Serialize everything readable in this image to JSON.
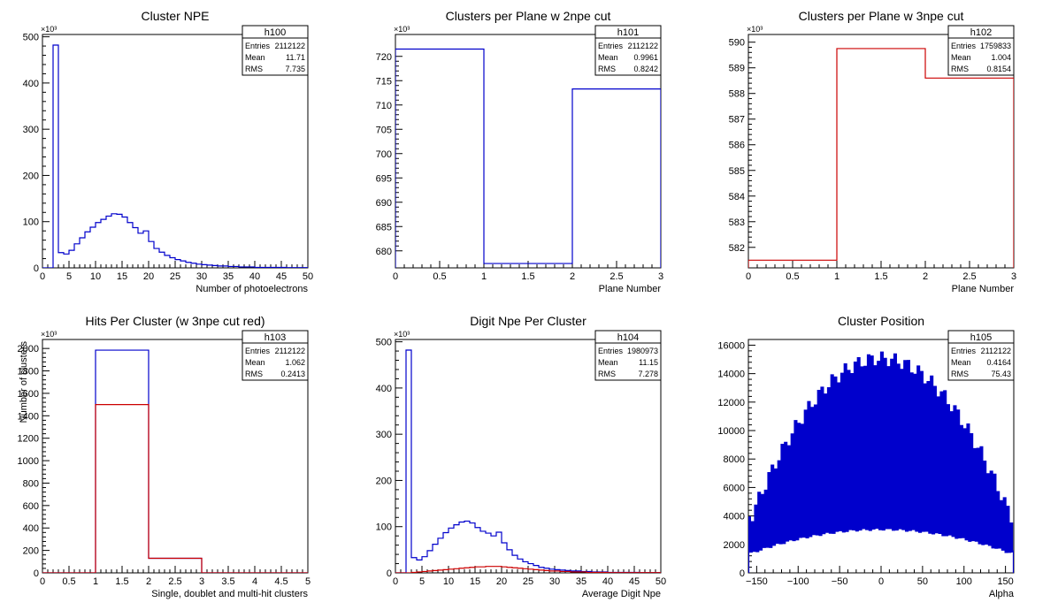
{
  "charts": [
    {
      "key": "h100",
      "title": "Cluster NPE",
      "stats": {
        "name": "h100",
        "rows": [
          [
            "Entries",
            "2112122"
          ],
          [
            "Mean",
            "11.71"
          ],
          [
            "RMS",
            "7.735"
          ]
        ]
      },
      "xlabel": "Number of photoelectrons",
      "ylabel": "",
      "exponent_label": "×10³",
      "x_ticks": [
        "0",
        "5",
        "10",
        "15",
        "20",
        "25",
        "30",
        "35",
        "40",
        "45",
        "50"
      ],
      "y_ticks": [
        "0",
        "100",
        "200",
        "300",
        "400",
        "500"
      ]
    },
    {
      "key": "h101",
      "title": "Clusters per Plane w 2npe cut",
      "stats": {
        "name": "h101",
        "rows": [
          [
            "Entries",
            "2112122"
          ],
          [
            "Mean",
            "0.9961"
          ],
          [
            "RMS",
            "0.8242"
          ]
        ]
      },
      "xlabel": "Plane Number",
      "ylabel": "",
      "exponent_label": "×10³",
      "x_ticks": [
        "0",
        "0.5",
        "1",
        "1.5",
        "2",
        "2.5",
        "3"
      ],
      "y_ticks": [
        "680",
        "685",
        "690",
        "695",
        "700",
        "705",
        "710",
        "715",
        "720"
      ]
    },
    {
      "key": "h102",
      "title": "Clusters per Plane w 3npe cut",
      "stats": {
        "name": "h102",
        "rows": [
          [
            "Entries",
            "1759833"
          ],
          [
            "Mean",
            "1.004"
          ],
          [
            "RMS",
            "0.8154"
          ]
        ]
      },
      "xlabel": "Plane Number",
      "ylabel": "",
      "exponent_label": "×10³",
      "x_ticks": [
        "0",
        "0.5",
        "1",
        "1.5",
        "2",
        "2.5",
        "3"
      ],
      "y_ticks": [
        "582",
        "583",
        "584",
        "585",
        "586",
        "587",
        "588",
        "589",
        "590"
      ]
    },
    {
      "key": "h103",
      "title": "Hits Per Cluster (w 3npe cut red)",
      "stats": {
        "name": "h103",
        "rows": [
          [
            "Entries",
            "2112122"
          ],
          [
            "Mean",
            "1.062"
          ],
          [
            "RMS",
            "0.2413"
          ]
        ]
      },
      "xlabel": "Single, doublet and multi-hit clusters",
      "ylabel": "Number of clusters",
      "exponent_label": "×10³",
      "x_ticks": [
        "0",
        "0.5",
        "1",
        "1.5",
        "2",
        "2.5",
        "3",
        "3.5",
        "4",
        "4.5",
        "5"
      ],
      "y_ticks": [
        "0",
        "200",
        "400",
        "600",
        "800",
        "1000",
        "1200",
        "1400",
        "1600",
        "1800",
        "2000"
      ]
    },
    {
      "key": "h104",
      "title": "Digit Npe Per Cluster",
      "stats": {
        "name": "h104",
        "rows": [
          [
            "Entries",
            "1980973"
          ],
          [
            "Mean",
            "11.15"
          ],
          [
            "RMS",
            "7.278"
          ]
        ]
      },
      "xlabel": "Average Digit Npe",
      "ylabel": "",
      "exponent_label": "×10³",
      "x_ticks": [
        "0",
        "5",
        "10",
        "15",
        "20",
        "25",
        "30",
        "35",
        "40",
        "45",
        "50"
      ],
      "y_ticks": [
        "0",
        "100",
        "200",
        "300",
        "400",
        "500"
      ]
    },
    {
      "key": "h105",
      "title": "Cluster Position",
      "stats": {
        "name": "h105",
        "rows": [
          [
            "Entries",
            "2112122"
          ],
          [
            "Mean",
            "0.4164"
          ],
          [
            "RMS",
            "75.43"
          ]
        ]
      },
      "xlabel": "Alpha",
      "ylabel": "",
      "exponent_label": "",
      "x_ticks": [
        "−150",
        "−100",
        "−50",
        "0",
        "50",
        "100",
        "150"
      ],
      "y_ticks": [
        "0",
        "2000",
        "4000",
        "6000",
        "8000",
        "10000",
        "12000",
        "14000",
        "16000"
      ]
    }
  ],
  "chart_data": [
    {
      "type": "bar",
      "title": "Cluster NPE",
      "xlabel": "Number of photoelectrons",
      "ylabel": "",
      "y_scale": "x10^3",
      "xlim": [
        0,
        50
      ],
      "ylim": [
        0,
        505
      ],
      "bin_width": 1,
      "x_start": 0,
      "series": [
        {
          "color": "#0000cc",
          "values": [
            0,
            0,
            482,
            33,
            30,
            38,
            52,
            65,
            78,
            88,
            98,
            105,
            112,
            117,
            116,
            110,
            98,
            87,
            75,
            80,
            57,
            42,
            34,
            27,
            22,
            18,
            15,
            12,
            10,
            8,
            7,
            6,
            5,
            4,
            4,
            3,
            3,
            2,
            2,
            2,
            1,
            1,
            1,
            1,
            1,
            1,
            0.5,
            0.5,
            0.5,
            0.5
          ]
        }
      ]
    },
    {
      "type": "bar",
      "title": "Clusters per Plane w 2npe cut",
      "xlabel": "Plane Number",
      "ylabel": "",
      "y_scale": "x10^3",
      "xlim": [
        0,
        3
      ],
      "ylim": [
        676.5,
        724.5
      ],
      "bin_width": 1,
      "x_start": 0,
      "series": [
        {
          "color": "#0000cc",
          "values": [
            721.5,
            677.4,
            713.3
          ]
        }
      ]
    },
    {
      "type": "bar",
      "title": "Clusters per Plane w 3npe cut",
      "xlabel": "Plane Number",
      "ylabel": "",
      "y_scale": "x10^3",
      "xlim": [
        0,
        3
      ],
      "ylim": [
        581.2,
        590.3
      ],
      "bin_width": 1,
      "x_start": 0,
      "series": [
        {
          "color": "#cc0000",
          "values": [
            581.5,
            589.75,
            588.6
          ]
        }
      ]
    },
    {
      "type": "bar",
      "title": "Hits Per Cluster (w 3npe cut red)",
      "xlabel": "Single, doublet and multi-hit clusters",
      "ylabel": "Number of clusters",
      "y_scale": "x10^3",
      "xlim": [
        0,
        5
      ],
      "ylim": [
        0,
        2080
      ],
      "bin_width": 1,
      "x_start": 0,
      "series": [
        {
          "color": "#0000cc",
          "values": [
            0,
            1985,
            130,
            0,
            0
          ]
        },
        {
          "color": "#cc0000",
          "values": [
            0,
            1500,
            130,
            0,
            0
          ]
        }
      ]
    },
    {
      "type": "bar",
      "title": "Digit Npe Per Cluster",
      "xlabel": "Average Digit Npe",
      "ylabel": "",
      "y_scale": "x10^3",
      "xlim": [
        0,
        50
      ],
      "ylim": [
        0,
        505
      ],
      "bin_width": 1,
      "x_start": 0,
      "series": [
        {
          "color": "#0000cc",
          "values": [
            0,
            0,
            482,
            33,
            28,
            35,
            48,
            62,
            75,
            87,
            97,
            104,
            110,
            112,
            108,
            98,
            90,
            86,
            80,
            88,
            65,
            50,
            38,
            30,
            24,
            20,
            16,
            12,
            10,
            8,
            7,
            6,
            5,
            4,
            4,
            3,
            3,
            2,
            2,
            2,
            1,
            1,
            1,
            1,
            1,
            1,
            0.5,
            0.5,
            0.5,
            0.5
          ]
        },
        {
          "color": "#cc0000",
          "values": [
            0,
            0,
            0,
            1,
            2,
            3,
            4,
            5,
            6,
            7,
            8,
            9,
            10,
            11,
            12,
            13,
            13,
            14,
            14,
            14,
            13,
            12,
            11,
            10,
            9,
            8,
            7,
            6,
            5,
            4,
            4,
            3,
            3,
            2,
            2,
            2,
            1,
            1,
            1,
            1,
            0.5,
            0.5,
            0.5,
            0.5,
            0.5,
            0.5,
            0.5,
            0.5,
            0.5,
            0.5
          ]
        }
      ]
    },
    {
      "type": "bar",
      "title": "Cluster Position",
      "xlabel": "Alpha",
      "ylabel": "",
      "xlim": [
        -160,
        160
      ],
      "ylim": [
        0,
        16400
      ],
      "bin_width": 2,
      "x_start": -160,
      "series": [
        {
          "color": "#0000cc",
          "profile": {
            "peak": 15000,
            "base": 3900,
            "center": 0,
            "width": 160,
            "fill_fraction": 0.55,
            "low": 1000,
            "ripple": 500
          }
        }
      ]
    }
  ]
}
